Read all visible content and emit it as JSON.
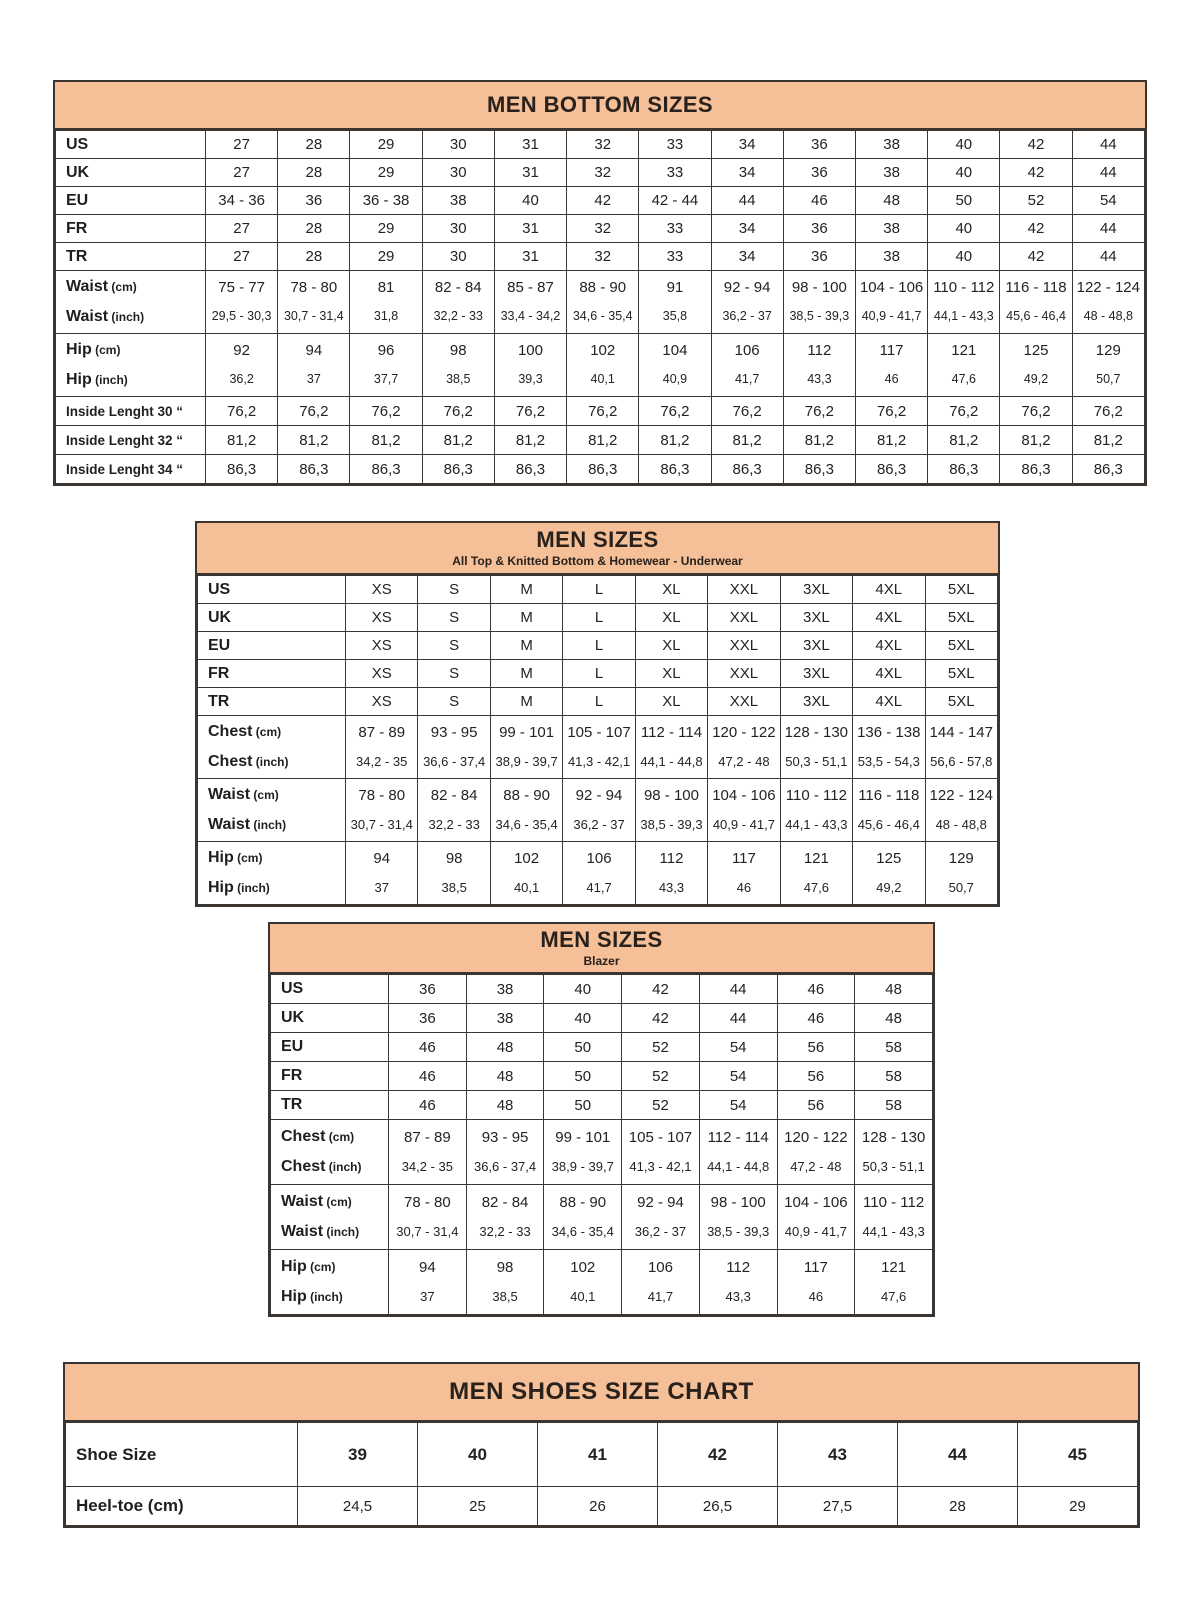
{
  "colors": {
    "header_bg": "#F5BF97",
    "border": "#3A3531",
    "text": "#232323"
  },
  "tables": [
    {
      "id": "men-bottom-sizes",
      "title": "MEN BOTTOM SIZES",
      "subtitle": "",
      "rows": [
        {
          "type": "size",
          "label": "US",
          "unit": "",
          "values": [
            "27",
            "28",
            "29",
            "30",
            "31",
            "32",
            "33",
            "34",
            "36",
            "38",
            "40",
            "42",
            "44"
          ]
        },
        {
          "type": "size",
          "label": "UK",
          "unit": "",
          "values": [
            "27",
            "28",
            "29",
            "30",
            "31",
            "32",
            "33",
            "34",
            "36",
            "38",
            "40",
            "42",
            "44"
          ]
        },
        {
          "type": "size",
          "label": "EU",
          "unit": "",
          "values": [
            "34 - 36",
            "36",
            "36 - 38",
            "38",
            "40",
            "42",
            "42 - 44",
            "44",
            "46",
            "48",
            "50",
            "52",
            "54"
          ]
        },
        {
          "type": "size",
          "label": "FR",
          "unit": "",
          "values": [
            "27",
            "28",
            "29",
            "30",
            "31",
            "32",
            "33",
            "34",
            "36",
            "38",
            "40",
            "42",
            "44"
          ]
        },
        {
          "type": "size",
          "label": "TR",
          "unit": "",
          "values": [
            "27",
            "28",
            "29",
            "30",
            "31",
            "32",
            "33",
            "34",
            "36",
            "38",
            "40",
            "42",
            "44"
          ]
        },
        {
          "type": "pair",
          "label": "Waist",
          "unit_top": "(cm)",
          "unit_bottom": "(inch)",
          "top": [
            "75 - 77",
            "78 - 80",
            "81",
            "82 - 84",
            "85 - 87",
            "88 - 90",
            "91",
            "92 - 94",
            "98 - 100",
            "104 - 106",
            "110 - 112",
            "116 - 118",
            "122 - 124"
          ],
          "bottom": [
            "29,5 - 30,3",
            "30,7 - 31,4",
            "31,8",
            "32,2 - 33",
            "33,4 - 34,2",
            "34,6 - 35,4",
            "35,8",
            "36,2 - 37",
            "38,5 - 39,3",
            "40,9 - 41,7",
            "44,1 - 43,3",
            "45,6 - 46,4",
            "48 - 48,8"
          ]
        },
        {
          "type": "pair",
          "label": "Hip",
          "unit_top": "(cm)",
          "unit_bottom": "(inch)",
          "top": [
            "92",
            "94",
            "96",
            "98",
            "100",
            "102",
            "104",
            "106",
            "112",
            "117",
            "121",
            "125",
            "129"
          ],
          "bottom": [
            "36,2",
            "37",
            "37,7",
            "38,5",
            "39,3",
            "40,1",
            "40,9",
            "41,7",
            "43,3",
            "46",
            "47,6",
            "49,2",
            "50,7"
          ]
        },
        {
          "type": "il",
          "label": "Inside Lenght 30 “",
          "unit": "",
          "values": [
            "76,2",
            "76,2",
            "76,2",
            "76,2",
            "76,2",
            "76,2",
            "76,2",
            "76,2",
            "76,2",
            "76,2",
            "76,2",
            "76,2",
            "76,2"
          ]
        },
        {
          "type": "il",
          "label": "Inside Lenght 32 “",
          "unit": "",
          "values": [
            "81,2",
            "81,2",
            "81,2",
            "81,2",
            "81,2",
            "81,2",
            "81,2",
            "81,2",
            "81,2",
            "81,2",
            "81,2",
            "81,2",
            "81,2"
          ]
        },
        {
          "type": "il",
          "label": "Inside Lenght 34 “",
          "unit": "",
          "values": [
            "86,3",
            "86,3",
            "86,3",
            "86,3",
            "86,3",
            "86,3",
            "86,3",
            "86,3",
            "86,3",
            "86,3",
            "86,3",
            "86,3",
            "86,3"
          ]
        }
      ]
    },
    {
      "id": "men-sizes-top",
      "title": "MEN SIZES",
      "subtitle": "All Top & Knitted Bottom & Homewear - Underwear",
      "rows": [
        {
          "type": "size",
          "label": "US",
          "unit": "",
          "values": [
            "XS",
            "S",
            "M",
            "L",
            "XL",
            "XXL",
            "3XL",
            "4XL",
            "5XL"
          ]
        },
        {
          "type": "size",
          "label": "UK",
          "unit": "",
          "values": [
            "XS",
            "S",
            "M",
            "L",
            "XL",
            "XXL",
            "3XL",
            "4XL",
            "5XL"
          ]
        },
        {
          "type": "size",
          "label": "EU",
          "unit": "",
          "values": [
            "XS",
            "S",
            "M",
            "L",
            "XL",
            "XXL",
            "3XL",
            "4XL",
            "5XL"
          ]
        },
        {
          "type": "size",
          "label": "FR",
          "unit": "",
          "values": [
            "XS",
            "S",
            "M",
            "L",
            "XL",
            "XXL",
            "3XL",
            "4XL",
            "5XL"
          ]
        },
        {
          "type": "size",
          "label": "TR",
          "unit": "",
          "values": [
            "XS",
            "S",
            "M",
            "L",
            "XL",
            "XXL",
            "3XL",
            "4XL",
            "5XL"
          ]
        },
        {
          "type": "pair",
          "label": "Chest",
          "unit_top": "(cm)",
          "unit_bottom": "(inch)",
          "top": [
            "87 - 89",
            "93 - 95",
            "99 - 101",
            "105 - 107",
            "112 - 114",
            "120 - 122",
            "128 - 130",
            "136 - 138",
            "144 - 147"
          ],
          "bottom": [
            "34,2 - 35",
            "36,6 - 37,4",
            "38,9 - 39,7",
            "41,3 - 42,1",
            "44,1 - 44,8",
            "47,2 - 48",
            "50,3 - 51,1",
            "53,5 - 54,3",
            "56,6 - 57,8"
          ]
        },
        {
          "type": "pair",
          "label": "Waist",
          "unit_top": "(cm)",
          "unit_bottom": "(inch)",
          "top": [
            "78 - 80",
            "82 - 84",
            "88 - 90",
            "92 - 94",
            "98 - 100",
            "104 - 106",
            "110 - 112",
            "116 - 118",
            "122 - 124"
          ],
          "bottom": [
            "30,7 - 31,4",
            "32,2 - 33",
            "34,6 - 35,4",
            "36,2 - 37",
            "38,5 - 39,3",
            "40,9 - 41,7",
            "44,1 - 43,3",
            "45,6 - 46,4",
            "48 - 48,8"
          ]
        },
        {
          "type": "pair",
          "label": "Hip",
          "unit_top": "(cm)",
          "unit_bottom": "(inch)",
          "top": [
            "94",
            "98",
            "102",
            "106",
            "112",
            "117",
            "121",
            "125",
            "129"
          ],
          "bottom": [
            "37",
            "38,5",
            "40,1",
            "41,7",
            "43,3",
            "46",
            "47,6",
            "49,2",
            "50,7"
          ]
        }
      ]
    },
    {
      "id": "men-sizes-blazer",
      "title": "MEN SIZES",
      "subtitle": "Blazer",
      "rows": [
        {
          "type": "size",
          "label": "US",
          "unit": "",
          "values": [
            "36",
            "38",
            "40",
            "42",
            "44",
            "46",
            "48"
          ]
        },
        {
          "type": "size",
          "label": "UK",
          "unit": "",
          "values": [
            "36",
            "38",
            "40",
            "42",
            "44",
            "46",
            "48"
          ]
        },
        {
          "type": "size",
          "label": "EU",
          "unit": "",
          "values": [
            "46",
            "48",
            "50",
            "52",
            "54",
            "56",
            "58"
          ]
        },
        {
          "type": "size",
          "label": "FR",
          "unit": "",
          "values": [
            "46",
            "48",
            "50",
            "52",
            "54",
            "56",
            "58"
          ]
        },
        {
          "type": "size",
          "label": "TR",
          "unit": "",
          "values": [
            "46",
            "48",
            "50",
            "52",
            "54",
            "56",
            "58"
          ]
        },
        {
          "type": "pair",
          "label": "Chest",
          "unit_top": "(cm)",
          "unit_bottom": "(inch)",
          "top": [
            "87 - 89",
            "93 - 95",
            "99 - 101",
            "105 - 107",
            "112 - 114",
            "120 - 122",
            "128 - 130"
          ],
          "bottom": [
            "34,2 - 35",
            "36,6 - 37,4",
            "38,9 - 39,7",
            "41,3 - 42,1",
            "44,1 - 44,8",
            "47,2 - 48",
            "50,3 - 51,1"
          ]
        },
        {
          "type": "pair",
          "label": "Waist",
          "unit_top": "(cm)",
          "unit_bottom": "(inch)",
          "top": [
            "78 - 80",
            "82 - 84",
            "88 - 90",
            "92 - 94",
            "98 - 100",
            "104 - 106",
            "110 - 112"
          ],
          "bottom": [
            "30,7 - 31,4",
            "32,2 - 33",
            "34,6 - 35,4",
            "36,2 - 37",
            "38,5 - 39,3",
            "40,9 - 41,7",
            "44,1 - 43,3"
          ]
        },
        {
          "type": "pair",
          "label": "Hip",
          "unit_top": "(cm)",
          "unit_bottom": "(inch)",
          "top": [
            "94",
            "98",
            "102",
            "106",
            "112",
            "117",
            "121"
          ],
          "bottom": [
            "37",
            "38,5",
            "40,1",
            "41,7",
            "43,3",
            "46",
            "47,6"
          ]
        }
      ]
    },
    {
      "id": "men-shoes-size-chart",
      "title": "MEN SHOES SIZE CHART",
      "subtitle": "",
      "rows": [
        {
          "type": "shoe",
          "label": "Shoe Size",
          "unit": "",
          "values": [
            "39",
            "40",
            "41",
            "42",
            "43",
            "44",
            "45"
          ]
        },
        {
          "type": "heel",
          "label": "Heel-toe (cm)",
          "unit": "",
          "values": [
            "24,5",
            "25",
            "26",
            "26,5",
            "27,5",
            "28",
            "29"
          ]
        }
      ]
    }
  ]
}
